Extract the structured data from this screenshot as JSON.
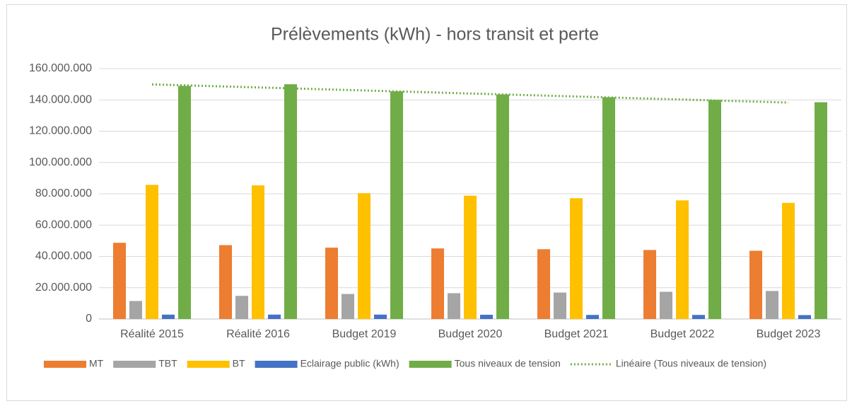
{
  "chart_data": {
    "type": "bar",
    "title": "Prélèvements (kWh) - hors transit et perte",
    "categories": [
      "Réalité 2015",
      "Réalité 2016",
      "Budget 2019",
      "Budget 2020",
      "Budget 2021",
      "Budget 2022",
      "Budget 2023"
    ],
    "series": [
      {
        "name": "MT",
        "color": "#ed7d31",
        "values": [
          48700000,
          47200000,
          45600000,
          45100000,
          44600000,
          44100000,
          43600000
        ]
      },
      {
        "name": "TBT",
        "color": "#a5a5a5",
        "values": [
          11500000,
          14800000,
          16000000,
          16500000,
          16900000,
          17400000,
          17900000
        ]
      },
      {
        "name": "BT",
        "color": "#ffc000",
        "values": [
          85700000,
          85400000,
          80400000,
          78800000,
          77200000,
          75800000,
          74200000
        ]
      },
      {
        "name": "Eclairage public (kWh)",
        "color": "#4472c4",
        "values": [
          2800000,
          2800000,
          2800000,
          2700000,
          2600000,
          2600000,
          2500000
        ]
      },
      {
        "name": "Tous niveaux de tension",
        "color": "#70ad47",
        "values": [
          149000000,
          150000000,
          145500000,
          143500000,
          141700000,
          140000000,
          138500000
        ]
      },
      {
        "name": "Linéaire (Tous niveaux de tension)",
        "color": "#70ad47",
        "type": "trendline",
        "values": [
          149900000,
          147970000,
          146030000,
          144100000,
          142170000,
          140230000,
          138300000
        ]
      }
    ],
    "ylim": [
      0,
      160000000
    ],
    "yticks": [
      0,
      {
        "value": 20000000,
        "label": "20.000.000"
      },
      {
        "value": 40000000,
        "label": "40.000.000"
      },
      {
        "value": 60000000,
        "label": "60.000.000"
      },
      {
        "value": 80000000,
        "label": "80.000.000"
      },
      {
        "value": 100000000,
        "label": "100.000.000"
      },
      {
        "value": 120000000,
        "label": "120.000.000"
      },
      {
        "value": 140000000,
        "label": "140.000.000"
      },
      {
        "value": 160000000,
        "label": "160.000.000"
      }
    ],
    "grid": true,
    "legend": "bottom"
  }
}
